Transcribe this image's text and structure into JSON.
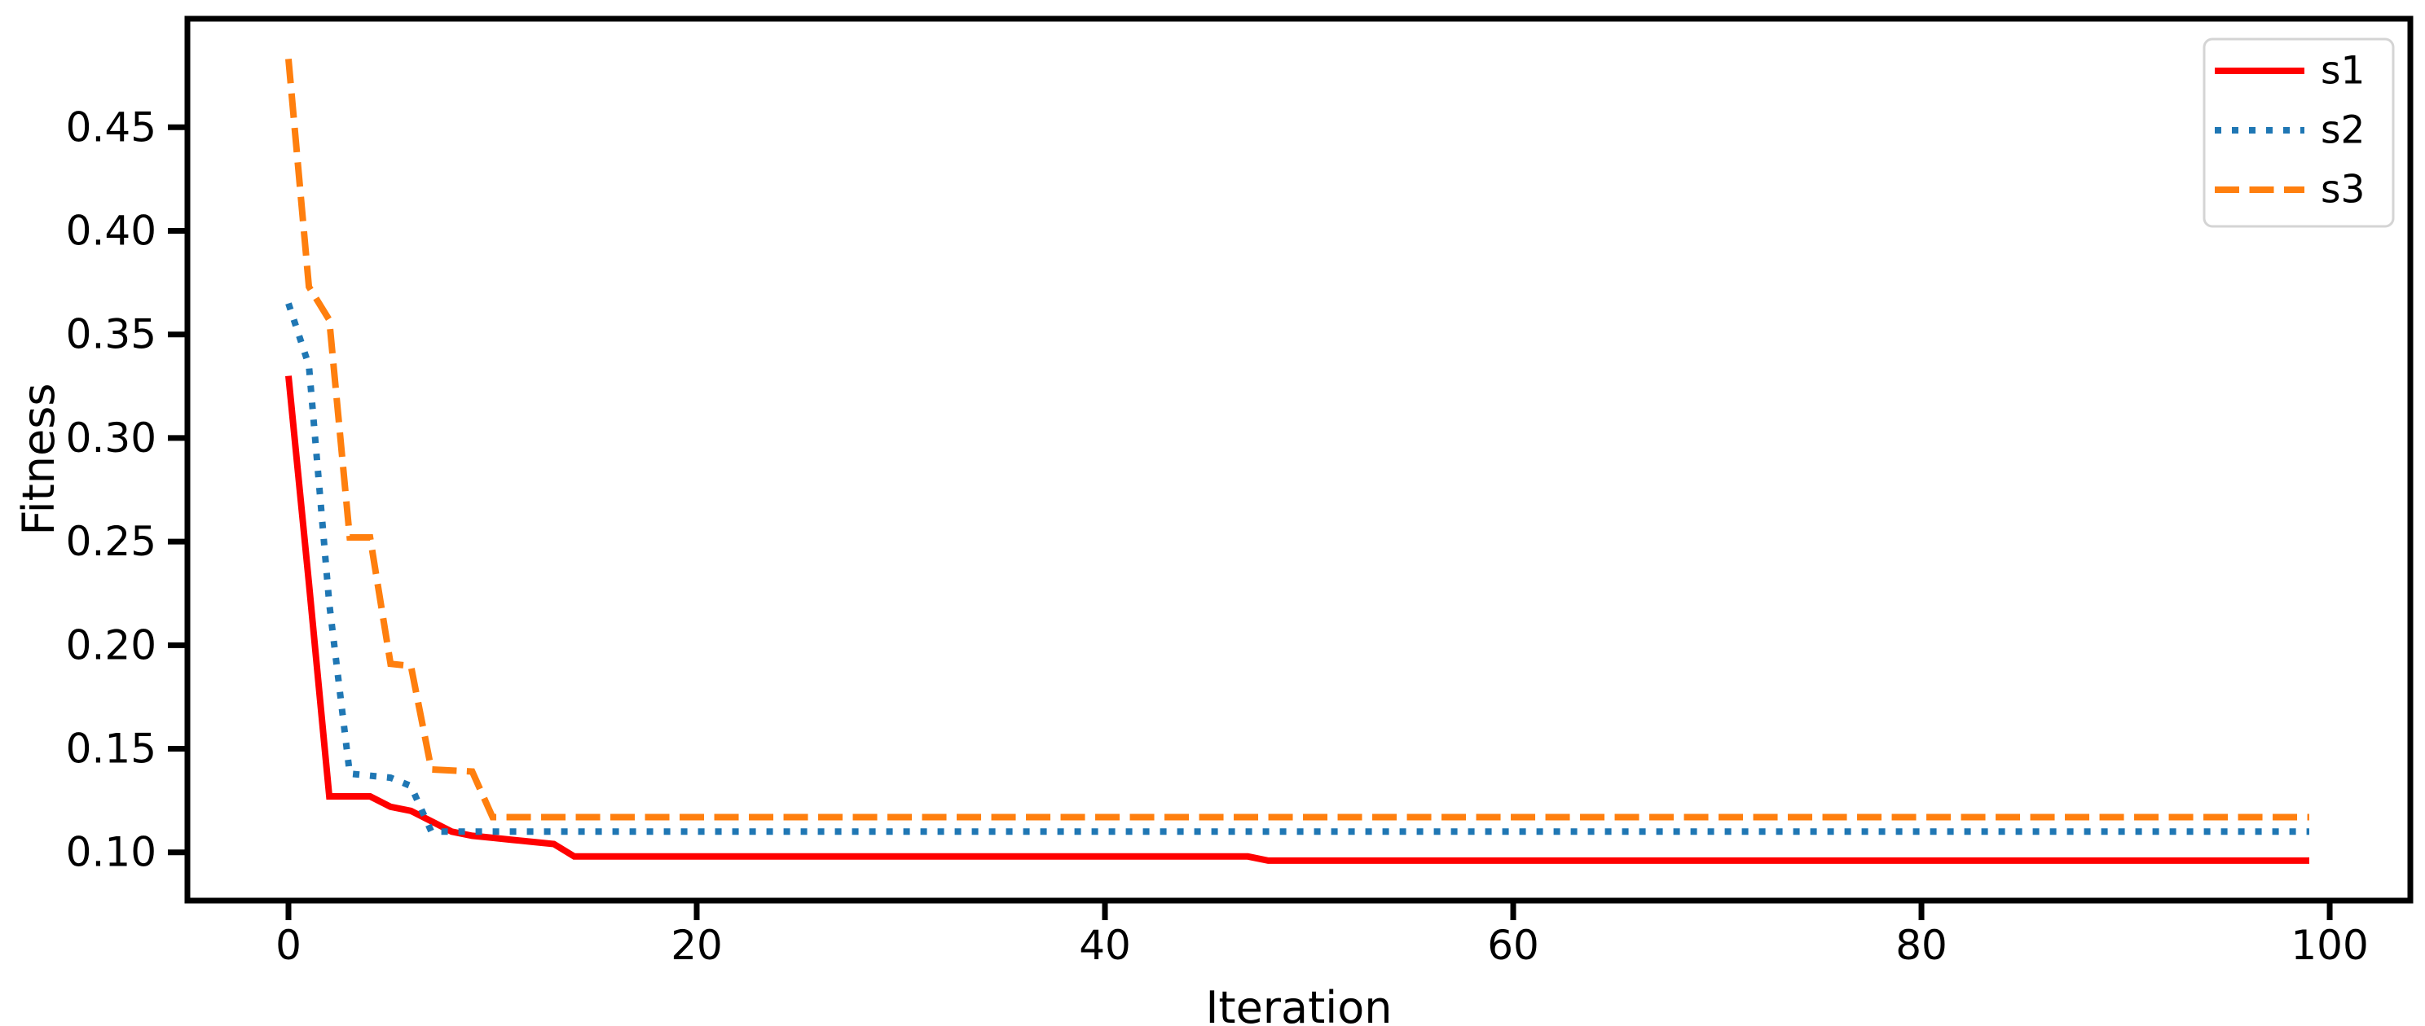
{
  "figure": {
    "background": "#ffffff",
    "text_color": "#000000"
  },
  "chart_data": {
    "type": "line",
    "title": "",
    "xlabel": "Iteration",
    "ylabel": "Fitness",
    "xlim": [
      -4.95,
      103.95
    ],
    "ylim": [
      0.0767,
      0.5024
    ],
    "grid": false,
    "xticks": [
      0,
      20,
      40,
      60,
      80,
      100
    ],
    "xtick_labels": [
      "0",
      "20",
      "40",
      "60",
      "80",
      "100"
    ],
    "yticks": [
      0.1,
      0.15,
      0.2,
      0.25,
      0.3,
      0.35,
      0.4,
      0.45
    ],
    "ytick_labels": [
      "0.10",
      "0.15",
      "0.20",
      "0.25",
      "0.30",
      "0.35",
      "0.40",
      "0.45"
    ],
    "legend": {
      "position": "upper right",
      "border_color": "#d4d4d4",
      "background": "#ffffff"
    },
    "series": [
      {
        "name": "s1",
        "color": "#ff0000",
        "style": "solid",
        "points": [
          [
            0,
            0.33
          ],
          [
            1,
            0.23
          ],
          [
            2,
            0.127
          ],
          [
            4,
            0.127
          ],
          [
            5,
            0.122
          ],
          [
            6,
            0.12
          ],
          [
            7,
            0.115
          ],
          [
            8,
            0.11
          ],
          [
            9,
            0.108
          ],
          [
            10,
            0.107
          ],
          [
            11,
            0.106
          ],
          [
            12,
            0.105
          ],
          [
            13,
            0.104
          ],
          [
            14,
            0.098
          ],
          [
            47,
            0.098
          ],
          [
            48,
            0.096
          ],
          [
            99,
            0.096
          ]
        ]
      },
      {
        "name": "s2",
        "color": "#1f77b4",
        "style": "dotted",
        "points": [
          [
            0,
            0.365
          ],
          [
            1,
            0.335
          ],
          [
            2,
            0.22
          ],
          [
            3,
            0.138
          ],
          [
            5,
            0.136
          ],
          [
            6,
            0.132
          ],
          [
            7,
            0.11
          ],
          [
            99,
            0.11
          ]
        ]
      },
      {
        "name": "s3",
        "color": "#ff7f0e",
        "style": "dashed",
        "points": [
          [
            0,
            0.483
          ],
          [
            1,
            0.373
          ],
          [
            2,
            0.357
          ],
          [
            3,
            0.252
          ],
          [
            4,
            0.252
          ],
          [
            5,
            0.191
          ],
          [
            6,
            0.19
          ],
          [
            7,
            0.14
          ],
          [
            9,
            0.139
          ],
          [
            10,
            0.117
          ],
          [
            99,
            0.117
          ]
        ]
      }
    ]
  }
}
